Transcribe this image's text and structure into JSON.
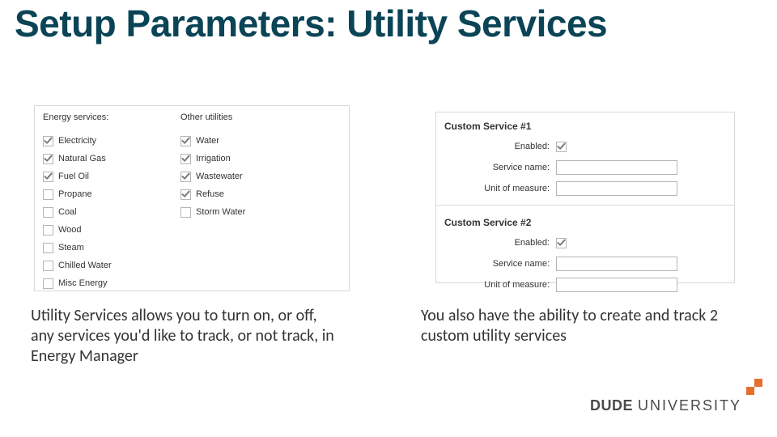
{
  "title": "Setup Parameters: Utility Services",
  "left_panel": {
    "energy_header": "Energy services:",
    "other_header": "Other utilities",
    "energy_items": [
      {
        "label": "Electricity",
        "checked": true
      },
      {
        "label": "Natural Gas",
        "checked": true
      },
      {
        "label": "Fuel Oil",
        "checked": true
      },
      {
        "label": "Propane",
        "checked": false
      },
      {
        "label": "Coal",
        "checked": false
      },
      {
        "label": "Wood",
        "checked": false
      },
      {
        "label": "Steam",
        "checked": false
      },
      {
        "label": "Chilled Water",
        "checked": false
      },
      {
        "label": "Misc Energy",
        "checked": false
      }
    ],
    "other_items": [
      {
        "label": "Water",
        "checked": true
      },
      {
        "label": "Irrigation",
        "checked": true
      },
      {
        "label": "Wastewater",
        "checked": true
      },
      {
        "label": "Refuse",
        "checked": true
      },
      {
        "label": "Storm Water",
        "checked": false
      }
    ]
  },
  "right_panel": {
    "services": [
      {
        "title": "Custom Service #1",
        "enabled": true,
        "service_name": "",
        "unit": ""
      },
      {
        "title": "Custom Service #2",
        "enabled": true,
        "service_name": "",
        "unit": ""
      }
    ],
    "labels": {
      "enabled": "Enabled:",
      "service_name": "Service name:",
      "unit": "Unit of measure:"
    }
  },
  "desc_left": "Utility Services allows you to turn on, or off, any services you'd like to track, or not track, in Energy Manager",
  "desc_right": "You also have the ability to create and track 2 custom utility services",
  "logo": {
    "dude": "DUDE",
    "univ": "UNIVERSITY"
  },
  "colors": {
    "title": "#0a4456",
    "accent": "#e76f2e",
    "border": "#d9d9d9",
    "checkbox_border": "#b5b5b5"
  }
}
